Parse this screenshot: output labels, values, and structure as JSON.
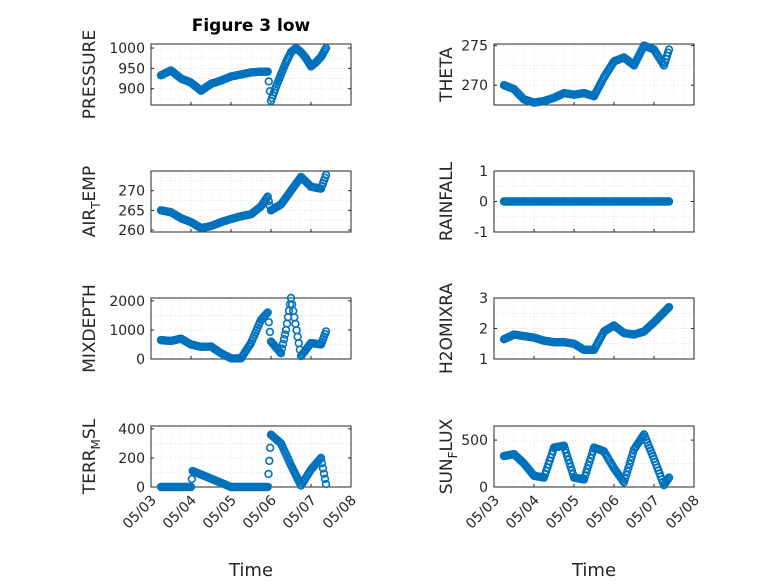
{
  "figure": {
    "title": "Figure 3 low",
    "xlabel": "Time"
  },
  "colors": {
    "marker": "#0072BD",
    "grid": "#dcdcdc",
    "axis": "#262626"
  },
  "chart_data": [
    {
      "type": "scatter",
      "ylabel": "PRESSURE",
      "ylim": [
        860,
        1010
      ],
      "yticks": [
        900,
        950,
        1000
      ],
      "ytick_labels": [
        "900",
        "950",
        "1000"
      ],
      "x_tick_labels": [],
      "grid": true,
      "title": "Figure 3 low",
      "marker": "circle-open",
      "x": [
        "2020-05-03T06:00",
        "2020-05-03T12:00",
        "2020-05-03T18:00",
        "2020-05-04T00:00",
        "2020-05-04T06:00",
        "2020-05-04T12:00",
        "2020-05-04T18:00",
        "2020-05-05T00:00",
        "2020-05-05T06:00",
        "2020-05-05T12:00",
        "2020-05-05T18:00",
        "2020-05-05T22:00",
        "2020-05-06T00:00",
        "2020-05-06T03:00",
        "2020-05-06T06:00",
        "2020-05-06T09:00",
        "2020-05-06T12:00",
        "2020-05-06T15:00",
        "2020-05-06T18:00",
        "2020-05-06T21:00",
        "2020-05-07T00:00",
        "2020-05-07T03:00",
        "2020-05-07T06:00",
        "2020-05-07T09:00"
      ],
      "y": [
        933,
        945,
        925,
        915,
        895,
        912,
        920,
        930,
        935,
        940,
        942,
        942,
        870,
        905,
        935,
        965,
        990,
        1000,
        990,
        975,
        955,
        965,
        978,
        1000
      ]
    },
    {
      "type": "scatter",
      "ylabel": "THETA",
      "ylim": [
        267.5,
        275.2
      ],
      "yticks": [
        270,
        275
      ],
      "ytick_labels": [
        "270",
        "275"
      ],
      "x_tick_labels": [],
      "grid": true,
      "marker": "circle-open",
      "x": [
        "2020-05-03T06:00",
        "2020-05-03T12:00",
        "2020-05-03T18:00",
        "2020-05-04T00:00",
        "2020-05-04T06:00",
        "2020-05-04T12:00",
        "2020-05-04T18:00",
        "2020-05-05T00:00",
        "2020-05-05T06:00",
        "2020-05-05T12:00",
        "2020-05-05T18:00",
        "2020-05-06T00:00",
        "2020-05-06T06:00",
        "2020-05-06T12:00",
        "2020-05-06T18:00",
        "2020-05-07T00:00",
        "2020-05-07T06:00",
        "2020-05-07T09:00"
      ],
      "y": [
        270,
        269.5,
        268.2,
        267.8,
        268,
        268.4,
        269,
        268.8,
        269,
        268.6,
        271,
        273,
        273.5,
        272.5,
        275,
        274.5,
        272.5,
        274.5
      ]
    },
    {
      "type": "scatter",
      "ylabel": "AIR_TEMP",
      "ylabel_main": "AIR",
      "ylabel_sub": "T",
      "ylabel_rest": "EMP",
      "ylim": [
        259.5,
        275
      ],
      "yticks": [
        260,
        265,
        270
      ],
      "ytick_labels": [
        "260",
        "265",
        "270"
      ],
      "x_tick_labels": [],
      "grid": true,
      "marker": "circle-open",
      "x": [
        "2020-05-03T06:00",
        "2020-05-03T12:00",
        "2020-05-03T18:00",
        "2020-05-04T00:00",
        "2020-05-04T06:00",
        "2020-05-04T12:00",
        "2020-05-04T18:00",
        "2020-05-05T00:00",
        "2020-05-05T06:00",
        "2020-05-05T12:00",
        "2020-05-05T18:00",
        "2020-05-05T22:00",
        "2020-05-06T00:00",
        "2020-05-06T06:00",
        "2020-05-06T12:00",
        "2020-05-06T18:00",
        "2020-05-07T00:00",
        "2020-05-07T06:00",
        "2020-05-07T09:00"
      ],
      "y": [
        265,
        264.5,
        263,
        262,
        260.5,
        261,
        262,
        262.8,
        263.5,
        264,
        266,
        268.5,
        265,
        266.5,
        270,
        273.5,
        271,
        270.5,
        274
      ]
    },
    {
      "type": "scatter",
      "ylabel": "RAINFALL",
      "ylim": [
        -1,
        1
      ],
      "yticks": [
        -1,
        0,
        1
      ],
      "ytick_labels": [
        "-1",
        "0",
        "1"
      ],
      "x_tick_labels": [],
      "grid": true,
      "marker": "circle-open",
      "x": [
        "2020-05-03T06:00",
        "2020-05-07T09:00"
      ],
      "y": [
        0,
        0
      ]
    },
    {
      "type": "scatter",
      "ylabel": "MIXDEPTH",
      "ylim": [
        0,
        2100
      ],
      "yticks": [
        0,
        1000,
        2000
      ],
      "ytick_labels": [
        "0",
        "1000",
        "2000"
      ],
      "x_tick_labels": [],
      "grid": true,
      "marker": "circle-open",
      "x": [
        "2020-05-03T06:00",
        "2020-05-03T12:00",
        "2020-05-03T18:00",
        "2020-05-04T00:00",
        "2020-05-04T06:00",
        "2020-05-04T12:00",
        "2020-05-04T18:00",
        "2020-05-05T00:00",
        "2020-05-05T06:00",
        "2020-05-05T12:00",
        "2020-05-05T18:00",
        "2020-05-05T22:00",
        "2020-05-06T00:00",
        "2020-05-06T06:00",
        "2020-05-06T09:00",
        "2020-05-06T12:00",
        "2020-05-06T18:00",
        "2020-05-07T00:00",
        "2020-05-07T06:00",
        "2020-05-07T09:00"
      ],
      "y": [
        650,
        620,
        700,
        500,
        420,
        430,
        200,
        20,
        20,
        550,
        1350,
        1600,
        600,
        200,
        1000,
        2100,
        100,
        550,
        500,
        950
      ]
    },
    {
      "type": "scatter",
      "ylabel": "H2OMIXRA",
      "ylim": [
        1,
        3
      ],
      "yticks": [
        1,
        2,
        3
      ],
      "ytick_labels": [
        "1",
        "2",
        "3"
      ],
      "x_tick_labels": [],
      "grid": true,
      "marker": "circle-open",
      "x": [
        "2020-05-03T06:00",
        "2020-05-03T12:00",
        "2020-05-03T18:00",
        "2020-05-04T00:00",
        "2020-05-04T06:00",
        "2020-05-04T12:00",
        "2020-05-04T18:00",
        "2020-05-05T00:00",
        "2020-05-05T06:00",
        "2020-05-05T12:00",
        "2020-05-05T18:00",
        "2020-05-06T00:00",
        "2020-05-06T06:00",
        "2020-05-06T12:00",
        "2020-05-06T18:00",
        "2020-05-07T00:00",
        "2020-05-07T09:00"
      ],
      "y": [
        1.65,
        1.8,
        1.75,
        1.7,
        1.6,
        1.55,
        1.55,
        1.5,
        1.3,
        1.3,
        1.9,
        2.1,
        1.85,
        1.8,
        1.9,
        2.2,
        2.7
      ]
    },
    {
      "type": "scatter",
      "ylabel": "TERR_MSL",
      "ylabel_main": "TERR",
      "ylabel_sub": "M",
      "ylabel_rest": "SL",
      "ylim": [
        0,
        420
      ],
      "yticks": [
        0,
        200,
        400
      ],
      "ytick_labels": [
        "0",
        "200",
        "400"
      ],
      "x_tick_labels": [
        "05/03",
        "05/04",
        "05/05",
        "05/06",
        "05/07",
        "05/08"
      ],
      "grid": true,
      "marker": "circle-open",
      "x": [
        "2020-05-03T06:00",
        "2020-05-04T00:00",
        "2020-05-04T01:00",
        "2020-05-05T00:00",
        "2020-05-05T22:00",
        "2020-05-05T23:00",
        "2020-05-06T00:00",
        "2020-05-06T06:00",
        "2020-05-06T12:00",
        "2020-05-06T18:00",
        "2020-05-07T00:00",
        "2020-05-07T06:00",
        "2020-05-07T09:00"
      ],
      "y": [
        0,
        0,
        110,
        0,
        0,
        180,
        360,
        300,
        150,
        10,
        120,
        200,
        20
      ]
    },
    {
      "type": "scatter",
      "ylabel": "SUN_FLUX",
      "ylabel_main": "SUN",
      "ylabel_sub": "F",
      "ylabel_rest": "LUX",
      "ylim": [
        0,
        650
      ],
      "yticks": [
        0,
        500
      ],
      "ytick_labels": [
        "0",
        "500"
      ],
      "x_tick_labels": [
        "05/03",
        "05/04",
        "05/05",
        "05/06",
        "05/07",
        "05/08"
      ],
      "grid": true,
      "marker": "circle-open",
      "x": [
        "2020-05-03T06:00",
        "2020-05-03T12:00",
        "2020-05-03T18:00",
        "2020-05-04T00:00",
        "2020-05-04T06:00",
        "2020-05-04T12:00",
        "2020-05-04T18:00",
        "2020-05-05T00:00",
        "2020-05-05T06:00",
        "2020-05-05T12:00",
        "2020-05-05T18:00",
        "2020-05-06T00:00",
        "2020-05-06T06:00",
        "2020-05-06T12:00",
        "2020-05-06T18:00",
        "2020-05-07T00:00",
        "2020-05-07T06:00",
        "2020-05-07T09:00"
      ],
      "y": [
        330,
        350,
        250,
        120,
        100,
        420,
        440,
        100,
        80,
        420,
        380,
        200,
        50,
        400,
        560,
        300,
        20,
        100
      ]
    }
  ]
}
